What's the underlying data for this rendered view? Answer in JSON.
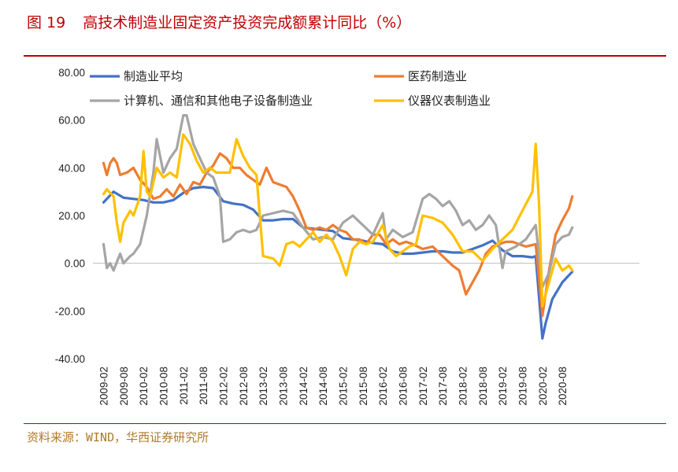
{
  "figure": {
    "number": "图 19",
    "title": "高技术制造业固定资产投资完成额累计同比（%）",
    "source": "资料来源：WIND，华西证券研究所"
  },
  "colors": {
    "accent": "#c00000",
    "source_text": "#b07a2a",
    "manufacturing": "#4472c4",
    "pharma": "#ed7d31",
    "electronics": "#a5a5a5",
    "instruments": "#ffc000"
  },
  "chart_data": {
    "type": "line",
    "title": "高技术制造业固定资产投资完成额累计同比（%）",
    "xlabel": "",
    "ylabel": "",
    "ylim": [
      -40,
      80
    ],
    "y_ticks": [
      "80.00",
      "60.00",
      "40.00",
      "20.00",
      "0.00",
      "-20.00",
      "-40.00"
    ],
    "x_tick_labels": [
      "2009-02",
      "2009-08",
      "2010-02",
      "2010-08",
      "2011-02",
      "2011-08",
      "2012-02",
      "2012-08",
      "2013-02",
      "2013-08",
      "2014-02",
      "2014-08",
      "2015-02",
      "2015-08",
      "2016-02",
      "2016-08",
      "2017-02",
      "2017-08",
      "2018-02",
      "2018-08",
      "2019-02",
      "2019-08",
      "2020-02",
      "2020-08"
    ],
    "x_start": "2009-02",
    "x_end": "2020-11",
    "grid": false,
    "legend_position": "top",
    "series": [
      {
        "name": "制造业平均",
        "color": "#4472c4",
        "points": [
          [
            "2009-02",
            25.5
          ],
          [
            "2009-05",
            30
          ],
          [
            "2009-08",
            27.5
          ],
          [
            "2009-11",
            27
          ],
          [
            "2010-02",
            26.5
          ],
          [
            "2010-05",
            25.5
          ],
          [
            "2010-08",
            25.5
          ],
          [
            "2010-11",
            26.5
          ],
          [
            "2011-02",
            29.5
          ],
          [
            "2011-05",
            31.5
          ],
          [
            "2011-08",
            32
          ],
          [
            "2011-11",
            31.5
          ],
          [
            "2012-02",
            26
          ],
          [
            "2012-05",
            25
          ],
          [
            "2012-08",
            24.5
          ],
          [
            "2012-11",
            22.5
          ],
          [
            "2013-02",
            18
          ],
          [
            "2013-05",
            18
          ],
          [
            "2013-08",
            18.5
          ],
          [
            "2013-11",
            18.5
          ],
          [
            "2014-02",
            15
          ],
          [
            "2014-05",
            14.5
          ],
          [
            "2014-08",
            14
          ],
          [
            "2014-11",
            13.5
          ],
          [
            "2015-02",
            10.5
          ],
          [
            "2015-05",
            10
          ],
          [
            "2015-08",
            9.5
          ],
          [
            "2015-11",
            8.5
          ],
          [
            "2016-02",
            8
          ],
          [
            "2016-05",
            5
          ],
          [
            "2016-08",
            4
          ],
          [
            "2016-11",
            4
          ],
          [
            "2017-02",
            4.5
          ],
          [
            "2017-05",
            5
          ],
          [
            "2017-08",
            5
          ],
          [
            "2017-11",
            4.5
          ],
          [
            "2018-02",
            4.5
          ],
          [
            "2018-05",
            6
          ],
          [
            "2018-08",
            7.5
          ],
          [
            "2018-11",
            9.5
          ],
          [
            "2019-02",
            5.5
          ],
          [
            "2019-05",
            3
          ],
          [
            "2019-08",
            3
          ],
          [
            "2019-11",
            2.5
          ],
          [
            "2019-12",
            3
          ],
          [
            "2020-02",
            -31.5
          ],
          [
            "2020-03",
            -25
          ],
          [
            "2020-05",
            -15
          ],
          [
            "2020-08",
            -8
          ],
          [
            "2020-11",
            -3.5
          ]
        ]
      },
      {
        "name": "医药制造业",
        "color": "#ed7d31",
        "points": [
          [
            "2009-02",
            42
          ],
          [
            "2009-03",
            37
          ],
          [
            "2009-04",
            42
          ],
          [
            "2009-05",
            44
          ],
          [
            "2009-06",
            42
          ],
          [
            "2009-07",
            37
          ],
          [
            "2009-09",
            38
          ],
          [
            "2009-11",
            40
          ],
          [
            "2010-01",
            35
          ],
          [
            "2010-03",
            32
          ],
          [
            "2010-05",
            27
          ],
          [
            "2010-07",
            28
          ],
          [
            "2010-09",
            31
          ],
          [
            "2010-11",
            28
          ],
          [
            "2011-01",
            33
          ],
          [
            "2011-03",
            29
          ],
          [
            "2011-05",
            34
          ],
          [
            "2011-07",
            33
          ],
          [
            "2011-09",
            38
          ],
          [
            "2011-11",
            41
          ],
          [
            "2012-01",
            46
          ],
          [
            "2012-03",
            44
          ],
          [
            "2012-05",
            40
          ],
          [
            "2012-07",
            40
          ],
          [
            "2012-09",
            37
          ],
          [
            "2012-11",
            35
          ],
          [
            "2013-01",
            33
          ],
          [
            "2013-03",
            40
          ],
          [
            "2013-05",
            34
          ],
          [
            "2013-07",
            33
          ],
          [
            "2013-09",
            32
          ],
          [
            "2013-11",
            28
          ],
          [
            "2014-01",
            22
          ],
          [
            "2014-03",
            15
          ],
          [
            "2014-05",
            14
          ],
          [
            "2014-07",
            15
          ],
          [
            "2014-09",
            14
          ],
          [
            "2014-11",
            16
          ],
          [
            "2015-01",
            14
          ],
          [
            "2015-03",
            13
          ],
          [
            "2015-05",
            10
          ],
          [
            "2015-07",
            10
          ],
          [
            "2015-09",
            8
          ],
          [
            "2015-11",
            12
          ],
          [
            "2016-01",
            12
          ],
          [
            "2016-03",
            8
          ],
          [
            "2016-05",
            10
          ],
          [
            "2016-07",
            8
          ],
          [
            "2016-09",
            9
          ],
          [
            "2016-11",
            8
          ],
          [
            "2017-02",
            6
          ],
          [
            "2017-05",
            7
          ],
          [
            "2017-08",
            3
          ],
          [
            "2017-11",
            -1
          ],
          [
            "2018-01",
            -3
          ],
          [
            "2018-03",
            -13
          ],
          [
            "2018-05",
            -8
          ],
          [
            "2018-07",
            -3
          ],
          [
            "2018-09",
            4
          ],
          [
            "2018-11",
            7
          ],
          [
            "2019-01",
            8
          ],
          [
            "2019-03",
            9
          ],
          [
            "2019-05",
            9
          ],
          [
            "2019-07",
            8
          ],
          [
            "2019-09",
            7
          ],
          [
            "2019-12",
            8
          ],
          [
            "2020-02",
            -22
          ],
          [
            "2020-04",
            -3
          ],
          [
            "2020-06",
            12
          ],
          [
            "2020-08",
            18
          ],
          [
            "2020-10",
            23
          ],
          [
            "2020-11",
            28
          ]
        ]
      },
      {
        "name": "计算机、通信和其他电子设备制造业",
        "color": "#a5a5a5",
        "points": [
          [
            "2009-02",
            8
          ],
          [
            "2009-03",
            -2
          ],
          [
            "2009-04",
            0
          ],
          [
            "2009-05",
            -3
          ],
          [
            "2009-07",
            4
          ],
          [
            "2009-08",
            0
          ],
          [
            "2009-10",
            3
          ],
          [
            "2009-11",
            4
          ],
          [
            "2010-01",
            8
          ],
          [
            "2010-03",
            20
          ],
          [
            "2010-05",
            38
          ],
          [
            "2010-06",
            52
          ],
          [
            "2010-08",
            38
          ],
          [
            "2010-10",
            44
          ],
          [
            "2010-12",
            48
          ],
          [
            "2011-02",
            62
          ],
          [
            "2011-03",
            62
          ],
          [
            "2011-05",
            50
          ],
          [
            "2011-07",
            44
          ],
          [
            "2011-09",
            38
          ],
          [
            "2011-11",
            36
          ],
          [
            "2012-01",
            28
          ],
          [
            "2012-02",
            9
          ],
          [
            "2012-04",
            10
          ],
          [
            "2012-06",
            13
          ],
          [
            "2012-08",
            14
          ],
          [
            "2012-10",
            13
          ],
          [
            "2012-12",
            14
          ],
          [
            "2013-02",
            20
          ],
          [
            "2013-05",
            21
          ],
          [
            "2013-08",
            22
          ],
          [
            "2013-11",
            21
          ],
          [
            "2014-02",
            15
          ],
          [
            "2014-05",
            10
          ],
          [
            "2014-08",
            11
          ],
          [
            "2014-11",
            10
          ],
          [
            "2015-02",
            17
          ],
          [
            "2015-05",
            20
          ],
          [
            "2015-08",
            16
          ],
          [
            "2015-11",
            12
          ],
          [
            "2016-02",
            21
          ],
          [
            "2016-03",
            10
          ],
          [
            "2016-05",
            14
          ],
          [
            "2016-08",
            11
          ],
          [
            "2016-11",
            13
          ],
          [
            "2017-02",
            27
          ],
          [
            "2017-04",
            29
          ],
          [
            "2017-06",
            27
          ],
          [
            "2017-08",
            24
          ],
          [
            "2017-10",
            26
          ],
          [
            "2017-12",
            22
          ],
          [
            "2018-02",
            16
          ],
          [
            "2018-04",
            18
          ],
          [
            "2018-06",
            14
          ],
          [
            "2018-08",
            16
          ],
          [
            "2018-10",
            20
          ],
          [
            "2018-12",
            16
          ],
          [
            "2019-02",
            -2
          ],
          [
            "2019-03",
            5
          ],
          [
            "2019-06",
            7
          ],
          [
            "2019-09",
            10
          ],
          [
            "2019-12",
            16
          ],
          [
            "2020-02",
            -10
          ],
          [
            "2020-04",
            -4
          ],
          [
            "2020-06",
            8
          ],
          [
            "2020-08",
            11
          ],
          [
            "2020-10",
            12
          ],
          [
            "2020-11",
            15
          ]
        ]
      },
      {
        "name": "仪器仪表制造业",
        "color": "#ffc000",
        "points": [
          [
            "2009-02",
            29
          ],
          [
            "2009-03",
            31
          ],
          [
            "2009-05",
            28
          ],
          [
            "2009-06",
            17
          ],
          [
            "2009-07",
            9
          ],
          [
            "2009-08",
            17
          ],
          [
            "2009-10",
            22
          ],
          [
            "2009-11",
            20
          ],
          [
            "2010-01",
            28
          ],
          [
            "2010-02",
            47
          ],
          [
            "2010-03",
            30
          ],
          [
            "2010-04",
            28
          ],
          [
            "2010-06",
            40
          ],
          [
            "2010-08",
            36
          ],
          [
            "2010-10",
            38
          ],
          [
            "2010-12",
            36
          ],
          [
            "2011-02",
            54
          ],
          [
            "2011-04",
            50
          ],
          [
            "2011-06",
            43
          ],
          [
            "2011-08",
            38
          ],
          [
            "2011-10",
            40
          ],
          [
            "2011-12",
            38
          ],
          [
            "2012-02",
            38
          ],
          [
            "2012-04",
            38
          ],
          [
            "2012-06",
            52
          ],
          [
            "2012-08",
            45
          ],
          [
            "2012-10",
            40
          ],
          [
            "2012-12",
            37
          ],
          [
            "2013-02",
            3
          ],
          [
            "2013-05",
            2
          ],
          [
            "2013-07",
            -1
          ],
          [
            "2013-09",
            8
          ],
          [
            "2013-11",
            9
          ],
          [
            "2014-01",
            7
          ],
          [
            "2014-03",
            10
          ],
          [
            "2014-05",
            13
          ],
          [
            "2014-07",
            9
          ],
          [
            "2014-09",
            12
          ],
          [
            "2014-11",
            9
          ],
          [
            "2015-01",
            3
          ],
          [
            "2015-03",
            -5
          ],
          [
            "2015-05",
            6
          ],
          [
            "2015-07",
            9
          ],
          [
            "2015-09",
            8
          ],
          [
            "2015-11",
            9
          ],
          [
            "2016-02",
            16
          ],
          [
            "2016-04",
            6
          ],
          [
            "2016-06",
            3
          ],
          [
            "2016-08",
            5
          ],
          [
            "2016-10",
            7
          ],
          [
            "2016-12",
            8
          ],
          [
            "2017-02",
            20
          ],
          [
            "2017-05",
            19
          ],
          [
            "2017-08",
            17
          ],
          [
            "2017-11",
            12
          ],
          [
            "2018-02",
            5
          ],
          [
            "2018-05",
            5
          ],
          [
            "2018-08",
            1
          ],
          [
            "2018-11",
            6
          ],
          [
            "2019-02",
            10
          ],
          [
            "2019-05",
            14
          ],
          [
            "2019-08",
            22
          ],
          [
            "2019-11",
            30
          ],
          [
            "2019-12",
            50
          ],
          [
            "2020-01",
            25
          ],
          [
            "2020-02",
            -18
          ],
          [
            "2020-04",
            -8
          ],
          [
            "2020-06",
            2
          ],
          [
            "2020-08",
            -3
          ],
          [
            "2020-10",
            -1
          ],
          [
            "2020-11",
            -3
          ]
        ]
      }
    ]
  }
}
